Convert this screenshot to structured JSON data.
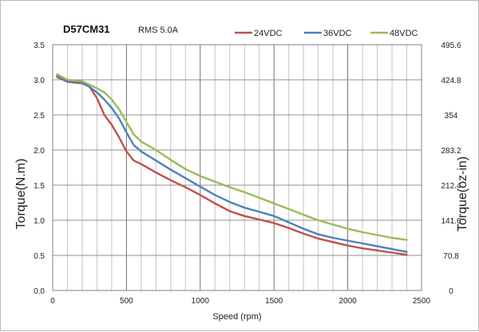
{
  "chart_data": {
    "type": "line",
    "title": "D57CM31",
    "subtitle": "RMS 5.0A",
    "xlabel": "Speed (rpm)",
    "ylabel": "Torque(N.m)",
    "ylabel_right": "Torque(oz-in)",
    "xlim": [
      0,
      2500
    ],
    "ylim": [
      0,
      3.5
    ],
    "x_ticks": [
      "0",
      "500",
      "1000",
      "1500",
      "2000",
      "2500"
    ],
    "y_ticks": [
      "0.0",
      "0.5",
      "1.0",
      "1.5",
      "2.0",
      "2.5",
      "3.0",
      "3.5"
    ],
    "y_right_ticks": [
      "0",
      "70.8",
      "141.6",
      "212.4",
      "283.2",
      "354",
      "424.8",
      "495.6"
    ],
    "grid": true,
    "legend_position": "top-right",
    "series": [
      {
        "name": "24VDC",
        "color": "#c0504d",
        "x": [
          30,
          100,
          150,
          200,
          250,
          300,
          350,
          400,
          450,
          500,
          550,
          600,
          700,
          800,
          900,
          1000,
          1100,
          1200,
          1300,
          1400,
          1500,
          1600,
          1700,
          1800,
          1900,
          2000,
          2100,
          2200,
          2300,
          2400
        ],
        "y": [
          3.04,
          2.97,
          2.96,
          2.95,
          2.9,
          2.74,
          2.5,
          2.36,
          2.18,
          1.98,
          1.85,
          1.8,
          1.68,
          1.57,
          1.47,
          1.36,
          1.24,
          1.13,
          1.06,
          1.01,
          0.96,
          0.89,
          0.81,
          0.74,
          0.69,
          0.64,
          0.6,
          0.57,
          0.54,
          0.51
        ]
      },
      {
        "name": "36VDC",
        "color": "#4f81bd",
        "x": [
          30,
          100,
          150,
          200,
          250,
          300,
          350,
          400,
          450,
          500,
          550,
          600,
          700,
          800,
          900,
          1000,
          1100,
          1200,
          1300,
          1400,
          1500,
          1600,
          1700,
          1800,
          1900,
          2000,
          2100,
          2200,
          2300,
          2400
        ],
        "y": [
          3.06,
          2.98,
          2.97,
          2.96,
          2.9,
          2.82,
          2.72,
          2.6,
          2.45,
          2.25,
          2.07,
          1.98,
          1.85,
          1.72,
          1.6,
          1.48,
          1.36,
          1.26,
          1.18,
          1.12,
          1.06,
          0.97,
          0.88,
          0.8,
          0.75,
          0.71,
          0.67,
          0.63,
          0.59,
          0.55
        ]
      },
      {
        "name": "48VDC",
        "color": "#9bbb59",
        "x": [
          30,
          100,
          150,
          200,
          250,
          300,
          350,
          400,
          450,
          500,
          550,
          600,
          700,
          800,
          900,
          1000,
          1100,
          1200,
          1300,
          1400,
          1500,
          1600,
          1700,
          1800,
          1900,
          2000,
          2100,
          2200,
          2300,
          2400
        ],
        "y": [
          3.08,
          3.0,
          2.99,
          2.98,
          2.93,
          2.88,
          2.82,
          2.72,
          2.58,
          2.4,
          2.22,
          2.12,
          2.0,
          1.86,
          1.73,
          1.63,
          1.55,
          1.47,
          1.4,
          1.32,
          1.24,
          1.16,
          1.08,
          1.0,
          0.94,
          0.88,
          0.83,
          0.79,
          0.75,
          0.72
        ]
      }
    ]
  }
}
